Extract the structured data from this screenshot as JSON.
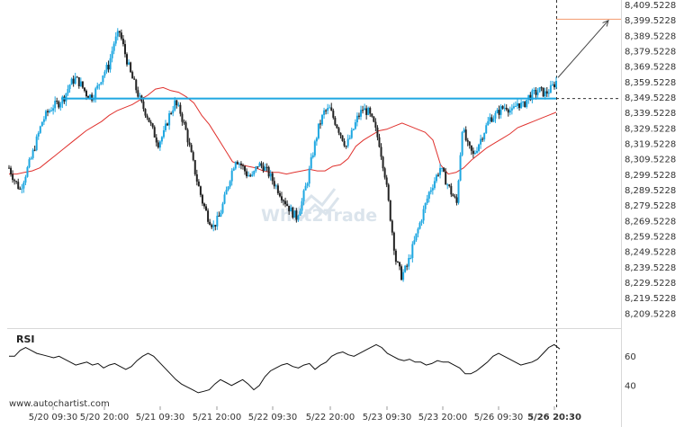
{
  "chart_data": [
    {
      "type": "candlestick",
      "price_range": [
        8204.5228,
        8409.5228
      ],
      "y_ticks": [
        "8,409.5228",
        "8,399.5228",
        "8,389.5228",
        "8,379.5228",
        "8,369.5228",
        "8,359.5228",
        "8,349.5228",
        "8,339.5228",
        "8,329.5228",
        "8,319.5228",
        "8,309.5228",
        "8,299.5228",
        "8,289.5228",
        "8,279.5228",
        "8,269.5228",
        "8,259.5228",
        "8,249.5228",
        "8,239.5228",
        "8,229.5228",
        "8,219.5228",
        "8,209.5228"
      ],
      "x_ticks": [
        "5/20 09:30",
        "5/20 20:00",
        "5/21 09:30",
        "5/21 20:00",
        "5/22 09:30",
        "5/22 20:00",
        "5/23 09:30",
        "5/23 20:00",
        "5/26 09:30",
        "5/26 20:30"
      ],
      "close_path": [
        8304,
        8296,
        8290,
        8300,
        8310,
        8322,
        8334,
        8340,
        8344,
        8346,
        8350,
        8358,
        8362,
        8358,
        8352,
        8350,
        8356,
        8365,
        8370,
        8385,
        8392,
        8378,
        8365,
        8355,
        8345,
        8338,
        8328,
        8320,
        8326,
        8338,
        8346,
        8340,
        8328,
        8312,
        8296,
        8282,
        8272,
        8266,
        8272,
        8284,
        8298,
        8310,
        8306,
        8300,
        8298,
        8306,
        8305,
        8300,
        8294,
        8288,
        8282,
        8276,
        8272,
        8282,
        8296,
        8314,
        8330,
        8340,
        8342,
        8334,
        8326,
        8318,
        8326,
        8336,
        8342,
        8340,
        8332,
        8320,
        8300,
        8272,
        8244,
        8234,
        8240,
        8252,
        8264,
        8276,
        8288,
        8296,
        8304,
        8296,
        8288,
        8281,
        8330,
        8318,
        8312,
        8320,
        8328,
        8336,
        8338,
        8342,
        8344,
        8340,
        8346,
        8344,
        8350,
        8352,
        8354,
        8352,
        8355,
        8360
      ],
      "support_level": 8348.9,
      "target_level": 8400.3,
      "forecast": {
        "from": 8362.5,
        "to": 8399.5
      },
      "moving_average": [
        8300,
        8300,
        8301,
        8302,
        8304,
        8308,
        8312,
        8316,
        8320,
        8324,
        8328,
        8331,
        8334,
        8338,
        8341,
        8343,
        8345,
        8348,
        8351,
        8355,
        8356,
        8354,
        8353,
        8350,
        8346,
        8338,
        8332,
        8324,
        8316,
        8308,
        8306,
        8305,
        8304,
        8302,
        8301,
        8301,
        8300,
        8301,
        8302,
        8303,
        8302,
        8302,
        8305,
        8306,
        8310,
        8318,
        8322,
        8325,
        8328,
        8329,
        8331,
        8333,
        8331,
        8329,
        8327,
        8322,
        8306,
        8300,
        8301,
        8304,
        8309,
        8313,
        8317,
        8320,
        8323,
        8326,
        8330,
        8332,
        8334,
        8336,
        8338,
        8340
      ],
      "annotations": [
        "What2Trade"
      ]
    },
    {
      "type": "line",
      "title": "RSI",
      "y_ticks": [
        "60",
        "40"
      ],
      "ylim": [
        30,
        75
      ],
      "values": [
        60,
        60,
        64,
        66,
        64,
        62,
        61,
        60,
        59,
        60,
        58,
        56,
        54,
        55,
        56,
        54,
        55,
        52,
        54,
        55,
        53,
        51,
        53,
        57,
        60,
        62,
        60,
        56,
        52,
        48,
        44,
        41,
        39,
        37,
        35,
        36,
        37,
        41,
        44,
        42,
        40,
        42,
        44,
        41,
        37,
        40,
        46,
        50,
        52,
        54,
        55,
        53,
        52,
        54,
        55,
        51,
        54,
        56,
        60,
        62,
        63,
        61,
        60,
        62,
        64,
        66,
        68,
        66,
        62,
        60,
        58,
        57,
        58,
        56,
        56,
        54,
        55,
        57,
        56,
        56,
        54,
        52,
        48,
        48,
        50,
        53,
        56,
        60,
        62,
        60,
        58,
        56,
        54,
        55,
        56,
        58,
        62,
        66,
        68,
        65
      ]
    }
  ],
  "branding": {
    "site": "www.autochartist.com"
  }
}
